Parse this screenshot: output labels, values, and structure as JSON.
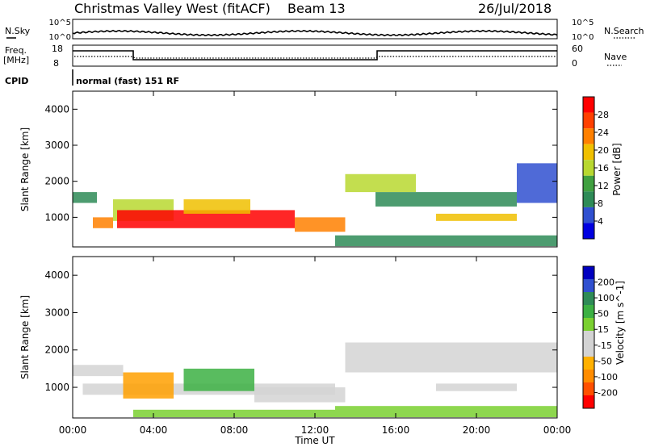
{
  "header": {
    "station": "Christmas Valley West (fitACF)",
    "beam": "Beam 13",
    "date": "26/Jul/2018"
  },
  "noise_panel": {
    "left_label": "N.Sky",
    "right_label": "N.Search",
    "left_ticks": [
      "10^5",
      "10^0"
    ],
    "right_ticks": [
      "10^5",
      "10^0"
    ]
  },
  "freq_panel": {
    "left_label_1": "Freq.",
    "left_label_2": "[MHz]",
    "left_ticks": [
      "18",
      "8"
    ],
    "right_label": "Nave",
    "right_ticks": [
      "60",
      "0"
    ]
  },
  "cpid_panel": {
    "label": "CPID",
    "text": "normal (fast) 151 RF"
  },
  "colors": {
    "power_scale": [
      "#0000e0",
      "#3050d0",
      "#2e8b57",
      "#40a040",
      "#b8d830",
      "#f0c000",
      "#ff8000",
      "#ff4000",
      "#ff0000"
    ],
    "velocity_scale": [
      "#ff0000",
      "#ff5000",
      "#ff8c00",
      "#ffb000",
      "#d3d3d3",
      "#d3d3d3",
      "#7ad030",
      "#3cb043",
      "#2e8b57",
      "#3050d0",
      "#0000c0"
    ]
  },
  "chart_data": [
    {
      "type": "heatmap",
      "name": "power",
      "ylabel": "Slant Range [km]",
      "yticks": [
        "4000",
        "3000",
        "2000",
        "1000"
      ],
      "colorbar_label": "Power [dB]",
      "colorbar_ticks": [
        "28",
        "24",
        "20",
        "16",
        "12",
        "8",
        "4"
      ],
      "ylim": [
        180,
        4500
      ],
      "regions": [
        {
          "t0": 0.0,
          "t1": 1.2,
          "r0": 1400,
          "r1": 1700,
          "level": "12"
        },
        {
          "t0": 1.0,
          "t1": 2.0,
          "r0": 700,
          "r1": 1000,
          "level": "24"
        },
        {
          "t0": 2.0,
          "t1": 5.0,
          "r0": 900,
          "r1": 1500,
          "level": "16"
        },
        {
          "t0": 2.2,
          "t1": 11.0,
          "r0": 700,
          "r1": 1200,
          "level": "28"
        },
        {
          "t0": 5.5,
          "t1": 8.8,
          "r0": 1100,
          "r1": 1500,
          "level": "20"
        },
        {
          "t0": 11.0,
          "t1": 13.5,
          "r0": 600,
          "r1": 1000,
          "level": "24"
        },
        {
          "t0": 13.0,
          "t1": 24.0,
          "r0": 200,
          "r1": 500,
          "level": "12"
        },
        {
          "t0": 13.5,
          "t1": 17.0,
          "r0": 1700,
          "r1": 2200,
          "level": "16"
        },
        {
          "t0": 15.0,
          "t1": 22.0,
          "r0": 1300,
          "r1": 1700,
          "level": "12"
        },
        {
          "t0": 18.0,
          "t1": 22.0,
          "r0": 900,
          "r1": 1100,
          "level": "20"
        },
        {
          "t0": 22.0,
          "t1": 24.0,
          "r0": 1400,
          "r1": 2500,
          "level": "8"
        }
      ]
    },
    {
      "type": "heatmap",
      "name": "velocity",
      "xlabel": "Time UT",
      "xticks": [
        "00:00",
        "04:00",
        "08:00",
        "12:00",
        "16:00",
        "20:00",
        "00:00"
      ],
      "ylabel": "Slant Range [km]",
      "yticks": [
        "4000",
        "3000",
        "2000",
        "1000"
      ],
      "colorbar_label": "Velocity [m s^-1]",
      "colorbar_ticks": [
        "200",
        "100",
        "50",
        "15",
        "-15",
        "-50",
        "-100",
        "-200"
      ],
      "ylim": [
        180,
        4500
      ],
      "regions": [
        {
          "t0": 0.0,
          "t1": 2.5,
          "r0": 1300,
          "r1": 1600,
          "level": "-15"
        },
        {
          "t0": 0.5,
          "t1": 13.0,
          "r0": 800,
          "r1": 1100,
          "level": "-15"
        },
        {
          "t0": 2.5,
          "t1": 5.0,
          "r0": 700,
          "r1": 1400,
          "level": "-50"
        },
        {
          "t0": 5.5,
          "t1": 9.0,
          "r0": 900,
          "r1": 1500,
          "level": "50"
        },
        {
          "t0": 9.0,
          "t1": 13.5,
          "r0": 600,
          "r1": 1000,
          "level": "-15"
        },
        {
          "t0": 3.0,
          "t1": 13.0,
          "r0": 200,
          "r1": 400,
          "level": "15"
        },
        {
          "t0": 13.0,
          "t1": 24.0,
          "r0": 200,
          "r1": 500,
          "level": "15"
        },
        {
          "t0": 13.5,
          "t1": 24.0,
          "r0": 1400,
          "r1": 2200,
          "level": "-15"
        },
        {
          "t0": 18.0,
          "t1": 22.0,
          "r0": 900,
          "r1": 1100,
          "level": "-15"
        }
      ]
    }
  ]
}
